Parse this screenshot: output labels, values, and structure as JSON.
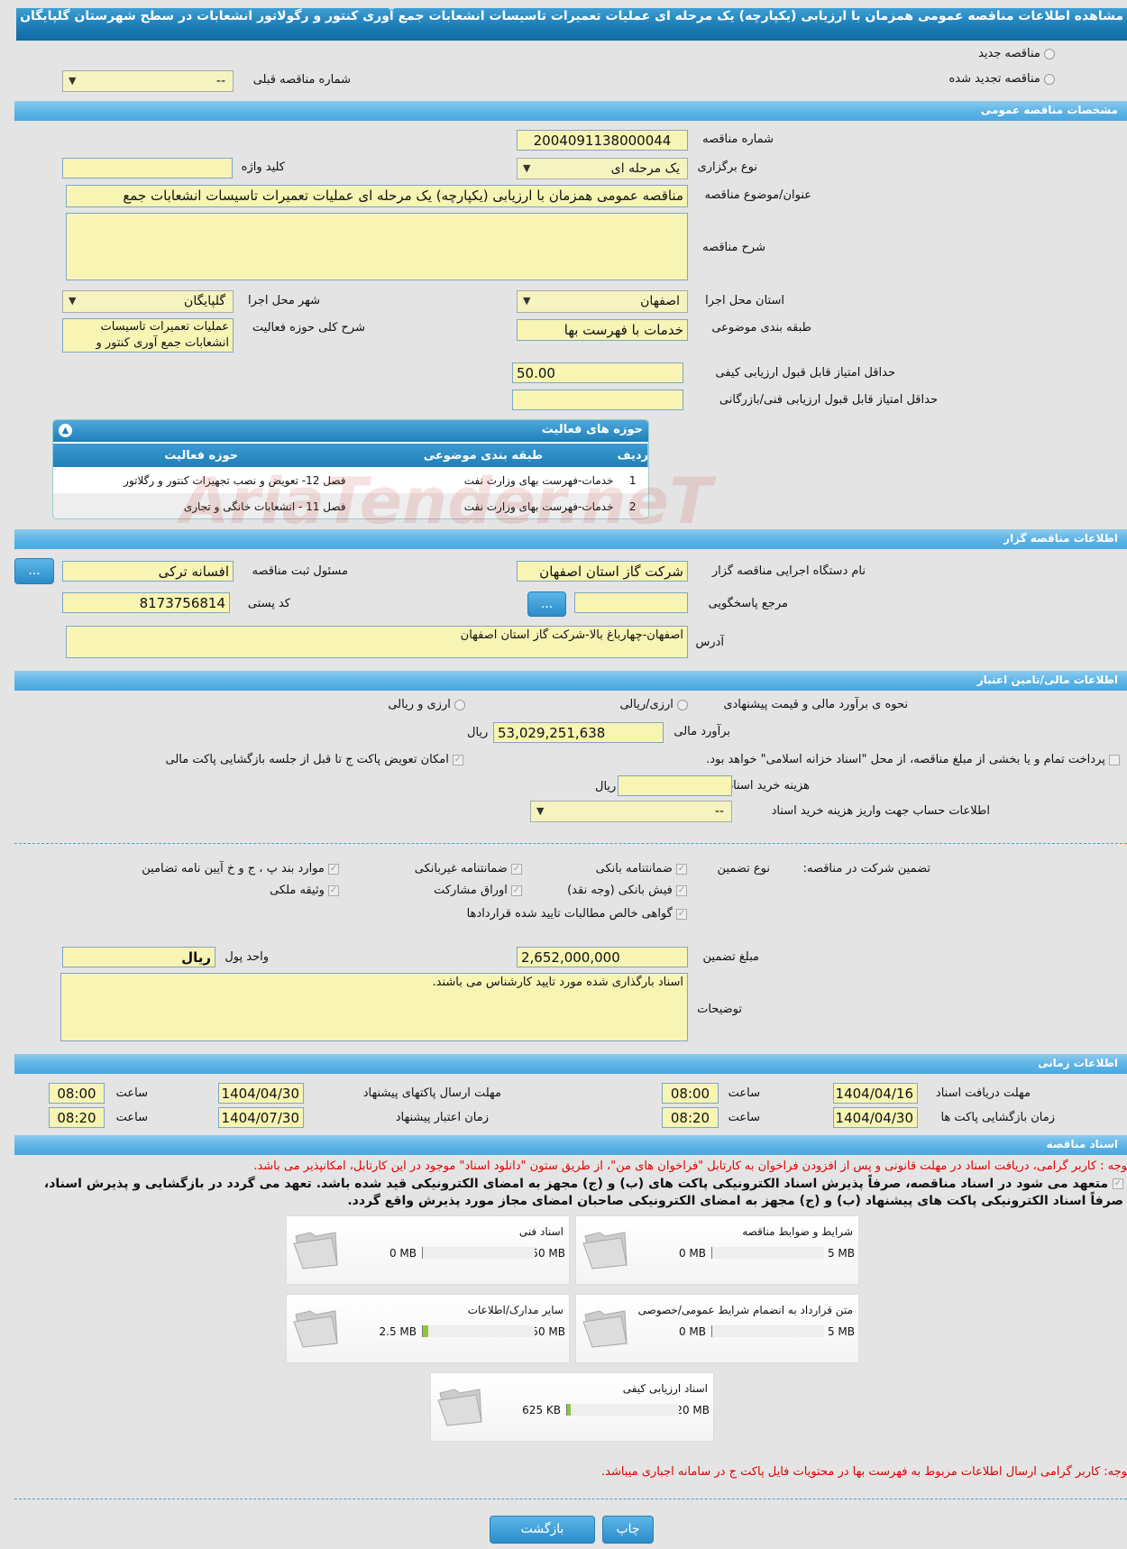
{
  "header": {
    "title": "مشاهده اطلاعات مناقصه عمومی همزمان با ارزیابی (یکپارچه) یک مرحله ای عملیات تعمیرات تاسیسات انشعابات جمع آوری کنتور و رگولاتور انشعابات در سطح شهرستان گلپایگان"
  },
  "tender_kind": {
    "new_label": "مناقصه جدید",
    "renewed_label": "مناقصه تجدید شده",
    "prev_number_label": "شماره مناقصه قبلی",
    "prev_number_value": "--"
  },
  "general": {
    "section_title": "مشخصات مناقصه عمومی",
    "number_label": "شماره مناقصه",
    "number_value": "2004091138000044",
    "type_label": "نوع برگزاری",
    "type_value": "یک مرحله ای",
    "keyword_label": "کلید واژه",
    "keyword_value": "",
    "subject_label": "عنوان/موضوع مناقصه",
    "subject_value": "مناقصه عمومی همزمان با ارزیابی (یکپارچه) یک مرحله ای عملیات تعمیرات تاسیسات انشعابات جمع",
    "desc_label": "شرح مناقصه",
    "desc_value": "",
    "province_label": "استان محل اجرا",
    "province_value": "اصفهان",
    "city_label": "شهر محل اجرا",
    "city_value": "گلپایگان",
    "class_label": "طبقه بندی موضوعی",
    "class_value": "خدمات با فهرست بها",
    "activity_label": "شرح کلی حوزه فعالیت",
    "activity_value": "عملیات تعمیرات تاسیسات انشعابات جمع آوری کنتور و",
    "quality_label": "حداقل امتیاز قابل قبول ارزیابی کیفی",
    "quality_value": "50.00",
    "tech_label": "حداقل امتیاز قابل قبول ارزیابی فنی/بازرگانی",
    "tech_value": ""
  },
  "activities": {
    "title": "حوزه های فعالیت",
    "headers": [
      "ردیف",
      "طبقه بندی موضوعی",
      "حوزه فعالیت"
    ],
    "rows": [
      [
        "1",
        "خدمات-فهرست بهای وزارت نفت",
        "فصل 12- تعویض و نصب تجهیزات کنتور و رگلاتور"
      ],
      [
        "2",
        "خدمات-فهرست بهای وزارت نفت",
        "فصل 11 - انشعابات خانگی و تجاری"
      ]
    ]
  },
  "watermark": "AriaTender.neT",
  "organizer": {
    "section_title": "اطلاعات مناقصه گزار",
    "org_label": "نام دستگاه اجرایی مناقصه گزار",
    "org_value": "شرکت گاز استان اصفهان",
    "resp_label": "مسئول ثبت مناقصه",
    "resp_value": "افسانه ترکی",
    "more_button": "...",
    "ref_label": "مرجع پاسخگویی",
    "ref_value": "",
    "postal_label": "کد پستی",
    "postal_value": "8173756814",
    "address_label": "آدرس",
    "address_value": "اصفهان-چهارباغ بالا-شرکت گاز استان اصفهان"
  },
  "finance": {
    "section_title": "اطلاعات مالی/تامین اعتبار",
    "method_label": "نحوه ی برآورد مالی و قیمت پیشنهادی",
    "opt1": "ارزی/ریالی",
    "opt2": "ارزی و ریالی",
    "estimate_label": "برآورد مالی",
    "estimate_value": "53,029,251,638",
    "currency": "ریال",
    "islamic_text": "پرداخت تمام و یا بخشی از مبلغ مناقصه، از محل \"اسناد خزانه اسلامی\" خواهد بود.",
    "swap_text": "امکان تعویض پاکت ج تا قبل از جلسه بازگشایی پاکت مالی",
    "doc_fee_label": "هزینه خرید اسناد",
    "doc_fee_value": "",
    "doc_fee_unit": "ریال",
    "account_label": "اطلاعات حساب جهت واریز هزینه خرید اسناد",
    "account_value": "--"
  },
  "guarantee": {
    "label": "تضمین شرکت در مناقصه:",
    "type_label": "نوع تضمین",
    "items": [
      "ضمانتنامه بانکی",
      "ضمانتنامه غیربانکی",
      "موارد بند پ ، ج و خ آیین نامه تضامین",
      "فیش بانکی (وجه نقد)",
      "اوراق مشارکت",
      "وثیقه ملکی",
      "گواهی خالص مطالبات تایید شده قراردادها"
    ],
    "amount_label": "مبلغ تضمین",
    "amount_value": "2,652,000,000",
    "unit_label": "واحد پول",
    "unit_value": "ریال",
    "notes_label": "توضیحات",
    "notes_value": "اسناد بارگذاری شده مورد تایید کارشناس می باشند."
  },
  "timing": {
    "section_title": "اطلاعات زمانی",
    "time_label": "ساعت",
    "receive_label": "مهلت دریافت اسناد",
    "receive_date": "1404/04/16",
    "receive_time": "08:00",
    "send_label": "مهلت ارسال پاکتهای پیشنهاد",
    "send_date": "1404/04/30",
    "send_time": "08:00",
    "open_label": "زمان بازگشایی پاکت ها",
    "open_date": "1404/04/30",
    "open_time": "08:20",
    "valid_label": "زمان اعتبار پیشنهاد",
    "valid_date": "1404/07/30",
    "valid_time": "08:20"
  },
  "documents": {
    "section_title": "اسناد مناقصه",
    "notice": "توجه : کاربر گرامی، دریافت اسناد در مهلت قانونی و پس از افزودن فراخوان به کارتابل \"فراخوان های من\"، از طریق ستون \"دانلود اسناد\" موجود در این کارتابل، امکانپذیر می باشد.",
    "commit_line1": "متعهد می شود در اسناد مناقصه، صرفاً پذیرش اسناد الکترونیکی پاکت های (ب) و (ج) مجهز به امضای الکترونیکی قید شده باشد. تعهد می گردد در بازگشایی و پذیرش اسناد،",
    "commit_line2": "صرفاً اسناد الکترونیکی پاکت های پیشنهاد (ب) و (ج) مجهز به امضای الکترونیکی صاحبان امضای مجاز مورد پذیرش واقع گردد.",
    "files": [
      {
        "name": "شرایط و ضوابط مناقصه",
        "used": "0 MB",
        "max": "5 MB",
        "fraction": 0
      },
      {
        "name": "اسناد فنی",
        "used": "0 MB",
        "max": "50 MB",
        "fraction": 0
      },
      {
        "name": "متن قرارداد به انضمام شرایط عمومی/خصوصی",
        "used": "0 MB",
        "max": "5 MB",
        "fraction": 0
      },
      {
        "name": "سایر مدارک/اطلاعات",
        "used": "2.5 MB",
        "max": "50 MB",
        "fraction": 0.05
      },
      {
        "name": "اسناد ارزیابی کیفی",
        "used": "625 KB",
        "max": "20 MB",
        "fraction": 0.03
      }
    ],
    "price_notice": "توجه: کاربر گرامی ارسال اطلاعات مربوط به فهرست بها در محتویات فایل پاکت ج در سامانه اجباری میباشد."
  },
  "footer": {
    "back_button": "بازگشت",
    "print_button": "چاپ"
  },
  "colors": {
    "header": "#1f7fb8",
    "section_bar": "#5fb5e6",
    "input_bg": "#f7f4b4",
    "notice": "#e00000",
    "progress": "#8fc53a"
  }
}
